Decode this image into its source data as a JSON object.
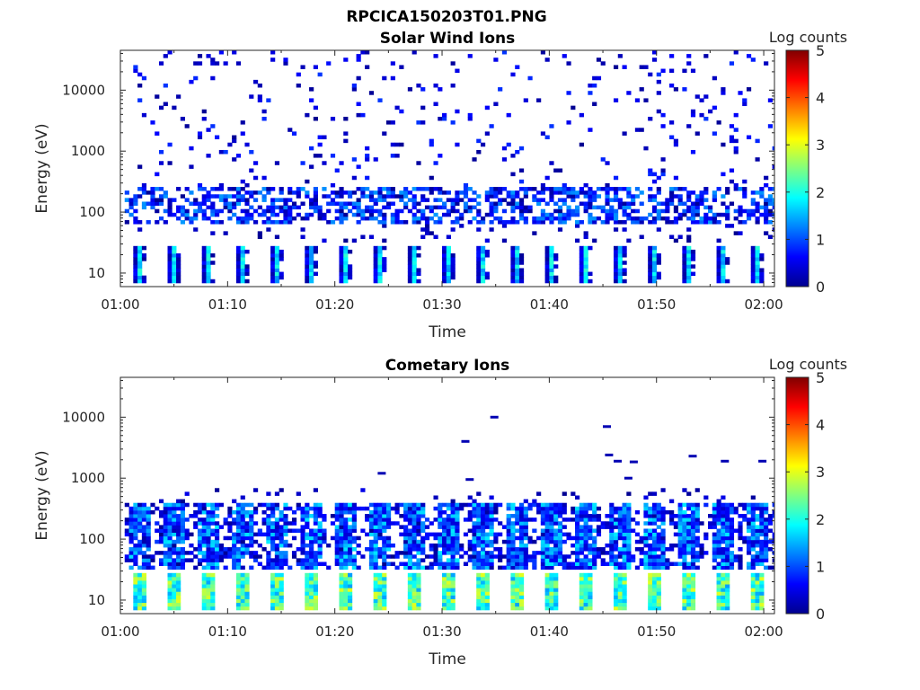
{
  "title": "RPCICA150203T01.PNG",
  "colormap": [
    "#00008f",
    "#0000ff",
    "#0080ff",
    "#00ffff",
    "#80ff80",
    "#ffff00",
    "#ff8000",
    "#ff0000",
    "#800000"
  ],
  "chart_data": [
    {
      "type": "heatmap",
      "title": "Solar Wind Ions",
      "xlabel": "Time",
      "ylabel": "Energy (eV)",
      "y_scale": "log",
      "xlim": [
        "01:00",
        "02:01"
      ],
      "ylim": [
        6,
        45000
      ],
      "xticks": [
        "01:00",
        "01:10",
        "01:20",
        "01:30",
        "01:40",
        "01:50",
        "02:00"
      ],
      "yticks": [
        "10",
        "100",
        "1000",
        "10000"
      ],
      "colorbar": {
        "label": "Log counts",
        "range": [
          0,
          5
        ],
        "ticks": [
          "0",
          "1",
          "2",
          "3",
          "4",
          "5"
        ]
      },
      "grid": false,
      "pattern": "~3-minute sweep cycles; sparse low counts 300 eV-40 keV; band ~100-200 eV at 0.5-1.5; low energy block 8-25 eV at 1-2 log counts"
    },
    {
      "type": "heatmap",
      "title": "Cometary Ions",
      "xlabel": "Time",
      "ylabel": "Energy (eV)",
      "y_scale": "log",
      "xlim": [
        "01:00",
        "02:01"
      ],
      "ylim": [
        6,
        45000
      ],
      "xticks": [
        "01:00",
        "01:10",
        "01:20",
        "01:30",
        "01:40",
        "01:50",
        "02:00"
      ],
      "yticks": [
        "10",
        "100",
        "1000",
        "10000"
      ],
      "colorbar": {
        "label": "Log counts",
        "range": [
          0,
          5
        ],
        "ticks": [
          "0",
          "1",
          "2",
          "3",
          "4",
          "5"
        ]
      },
      "grid": false,
      "pattern": "~3-minute sweep cycles; broad band 30-500 eV at 0.5-2 log counts; low energy block 8-25 eV at 2-3 log counts; few isolated points above 1 keV"
    }
  ]
}
